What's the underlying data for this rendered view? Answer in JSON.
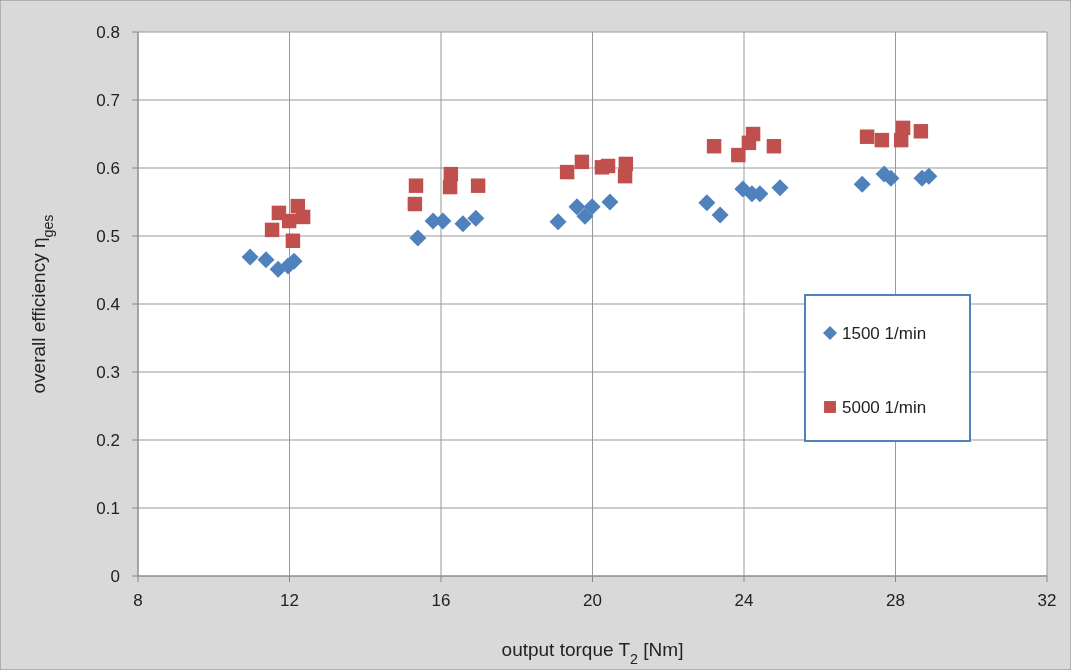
{
  "chart_data": {
    "type": "scatter",
    "xlabel": "output torque T$_{2}$ [Nm]",
    "ylabel": "overall efficiency  η$_{ges}$",
    "xlim": [
      8,
      32
    ],
    "xticks": [
      8,
      12,
      16,
      20,
      24,
      28,
      32
    ],
    "ylim": [
      0,
      0.8
    ],
    "yticks": [
      0,
      0.1,
      0.2,
      0.3,
      0.4,
      0.5,
      0.6,
      0.7,
      0.8
    ],
    "grid": true,
    "legend": "right",
    "series": [
      {
        "name": "1500 1/min",
        "color": "#4f81bd",
        "marker": "diamond",
        "x": [
          10.96,
          11.38,
          11.7,
          11.96,
          12.12,
          15.39,
          15.79,
          16.05,
          16.58,
          16.92,
          19.09,
          19.59,
          19.8,
          19.99,
          20.46,
          23.02,
          23.37,
          23.97,
          24.21,
          24.42,
          24.95,
          27.12,
          27.7,
          27.88,
          28.7,
          28.88
        ],
        "values": [
          0.469,
          0.465,
          0.451,
          0.456,
          0.463,
          0.497,
          0.522,
          0.522,
          0.518,
          0.526,
          0.521,
          0.543,
          0.529,
          0.543,
          0.55,
          0.549,
          0.531,
          0.569,
          0.562,
          0.562,
          0.571,
          0.576,
          0.591,
          0.585,
          0.585,
          0.588
        ]
      },
      {
        "name": "5000 1/min",
        "color": "#c0504d",
        "marker": "square",
        "x": [
          11.54,
          11.72,
          11.99,
          12.22,
          12.36,
          12.09,
          15.31,
          15.34,
          16.26,
          16.24,
          16.98,
          19.33,
          19.72,
          20.25,
          20.41,
          20.88,
          20.86,
          23.21,
          23.85,
          24.13,
          24.24,
          24.79,
          27.25,
          27.64,
          28.15,
          28.2,
          28.67
        ],
        "values": [
          0.509,
          0.534,
          0.522,
          0.544,
          0.528,
          0.493,
          0.547,
          0.574,
          0.591,
          0.572,
          0.574,
          0.594,
          0.609,
          0.601,
          0.603,
          0.606,
          0.588,
          0.632,
          0.619,
          0.637,
          0.65,
          0.632,
          0.646,
          0.641,
          0.641,
          0.659,
          0.654
        ]
      }
    ]
  }
}
